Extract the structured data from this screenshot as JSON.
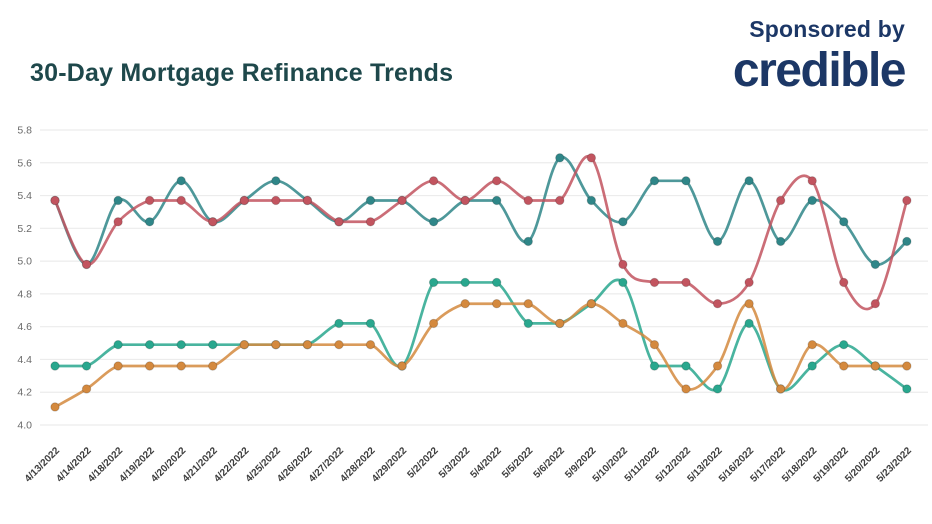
{
  "header": {
    "title": "30-Day Mortgage Refinance Trends",
    "sponsored_by": "Sponsored by",
    "brand": "credible"
  },
  "colors": {
    "title_text": "#1e484b",
    "brand_navy": "#1c3766",
    "grid": "#ececec",
    "y_label": "#6a6a6a",
    "x_label": "#3e3e3e"
  },
  "chart_data": {
    "type": "line",
    "title": "30-Day Mortgage Refinance Trends",
    "xlabel": "",
    "ylabel": "",
    "ylim": [
      4.0,
      5.8
    ],
    "ytick_step": 0.2,
    "grid": "horizontal",
    "legend": "none",
    "markers": true,
    "x": [
      "4/13/2022",
      "4/14/2022",
      "4/18/2022",
      "4/19/2022",
      "4/20/2022",
      "4/21/2022",
      "4/22/2022",
      "4/25/2022",
      "4/26/2022",
      "4/27/2022",
      "4/28/2022",
      "4/29/2022",
      "5/2/2022",
      "5/3/2022",
      "5/4/2022",
      "5/5/2022",
      "5/6/2022",
      "5/9/2022",
      "5/10/2022",
      "5/11/2022",
      "5/12/2022",
      "5/13/2022",
      "5/16/2022",
      "5/17/2022",
      "5/18/2022",
      "5/19/2022",
      "5/20/2022",
      "5/23/2022"
    ],
    "series": [
      {
        "name": "rate-series-teal-dark",
        "color": "#2f8688",
        "values": [
          5.37,
          4.98,
          5.37,
          5.24,
          5.49,
          5.24,
          5.37,
          5.49,
          5.37,
          5.24,
          5.37,
          5.37,
          5.24,
          5.37,
          5.37,
          5.12,
          5.63,
          5.37,
          5.24,
          5.49,
          5.49,
          5.12,
          5.49,
          5.12,
          5.37,
          5.24,
          4.98,
          5.12
        ]
      },
      {
        "name": "rate-series-red",
        "color": "#c2545f",
        "values": [
          5.37,
          4.98,
          5.24,
          5.37,
          5.37,
          5.24,
          5.37,
          5.37,
          5.37,
          5.24,
          5.24,
          5.37,
          5.49,
          5.37,
          5.49,
          5.37,
          5.37,
          5.63,
          4.98,
          4.87,
          4.87,
          4.74,
          4.87,
          5.37,
          5.49,
          4.87,
          4.74,
          5.37
        ]
      },
      {
        "name": "rate-series-teal-light",
        "color": "#29a78e",
        "values": [
          4.36,
          4.36,
          4.49,
          4.49,
          4.49,
          4.49,
          4.49,
          4.49,
          4.49,
          4.62,
          4.62,
          4.36,
          4.87,
          4.87,
          4.87,
          4.62,
          4.62,
          4.74,
          4.87,
          4.36,
          4.36,
          4.22,
          4.62,
          4.22,
          4.36,
          4.49,
          4.36,
          4.22
        ]
      },
      {
        "name": "rate-series-orange",
        "color": "#d4893e",
        "values": [
          4.11,
          4.22,
          4.36,
          4.36,
          4.36,
          4.36,
          4.49,
          4.49,
          4.49,
          4.49,
          4.49,
          4.36,
          4.62,
          4.74,
          4.74,
          4.74,
          4.62,
          4.74,
          4.62,
          4.49,
          4.22,
          4.36,
          4.74,
          4.22,
          4.49,
          4.36,
          4.36,
          4.36
        ]
      }
    ]
  }
}
